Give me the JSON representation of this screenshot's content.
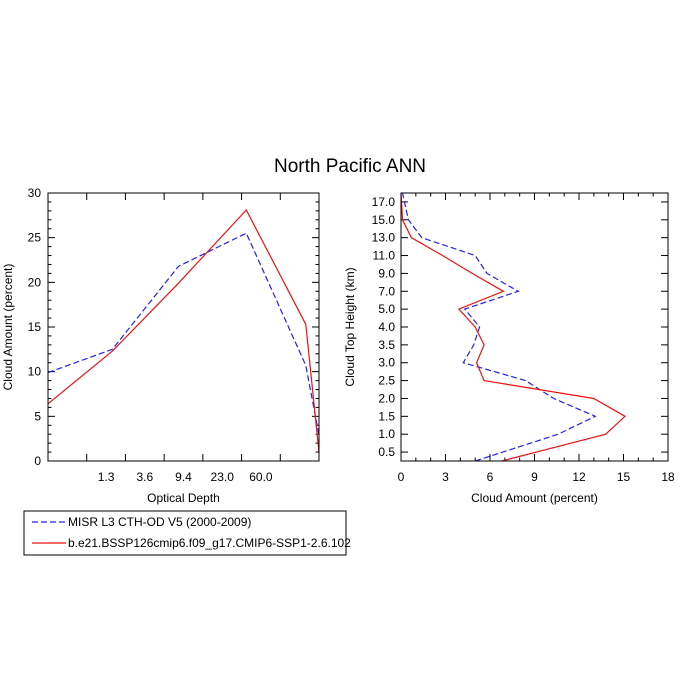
{
  "title": "North Pacific ANN",
  "colors": {
    "series1": "#2222ee",
    "series2": "#ee1111"
  },
  "legend": {
    "placement": "bottom-left",
    "entries": [
      {
        "label": "MISR L3 CTH-OD V5 (2000-2009)",
        "color": "#2222ee",
        "dash": "dashed"
      },
      {
        "label": "b.e21.BSSP126cmip6.f09_g17.CMIP6-SSP1-2.6.102",
        "color": "#ee1111",
        "dash": "solid"
      }
    ]
  },
  "chart_data": [
    {
      "type": "line",
      "xlabel": "Optical Depth",
      "ylabel": "Cloud Amount (percent)",
      "x_tick_labels": [
        "1.3",
        "3.6",
        "9.4",
        "23.0",
        "60.0"
      ],
      "y_ticks": [
        0,
        5,
        10,
        15,
        20,
        25,
        30
      ],
      "ylim": [
        0,
        30
      ],
      "grid": false,
      "x_bins": 7,
      "series": [
        {
          "name": "MISR L3 CTH-OD V5 (2000-2009)",
          "values": [
            9.9,
            12.5,
            21.8,
            25.5,
            10.7,
            2.9
          ]
        },
        {
          "name": "b.e21.BSSP126cmip6.f09_g17.CMIP6-SSP1-2.6.102",
          "values": [
            6.4,
            12.3,
            19.9,
            28.1,
            15.3,
            1.0
          ]
        }
      ]
    },
    {
      "type": "line",
      "xlabel": "Cloud Amount (percent)",
      "ylabel": "Cloud Top Height (km)",
      "x_ticks": [
        0,
        3,
        6,
        9,
        12,
        15,
        18
      ],
      "xlim": [
        0,
        18
      ],
      "y_tick_labels": [
        "0.5",
        "1.0",
        "1.5",
        "2.0",
        "2.5",
        "3.0",
        "3.5",
        "4.0",
        "5.0",
        "7.0",
        "9.0",
        "11.0",
        "13.0",
        "15.0",
        "17.0"
      ],
      "grid": false,
      "series": [
        {
          "name": "MISR L3 CTH-OD V5 (2000-2009)",
          "values": [
            5.0,
            10.6,
            13.1,
            10.3,
            8.4,
            4.2,
            4.9,
            5.3,
            4.3,
            7.9,
            5.8,
            5.0,
            1.4,
            0.5,
            0.1
          ]
        },
        {
          "name": "b.e21.BSSP126cmip6.f09_g17.CMIP6-SSP1-2.6.102",
          "values": [
            6.8,
            13.8,
            15.1,
            13.0,
            5.6,
            5.1,
            5.6,
            5.0,
            3.9,
            6.9,
            4.8,
            2.8,
            0.7,
            0.1,
            0.0
          ]
        }
      ]
    }
  ]
}
